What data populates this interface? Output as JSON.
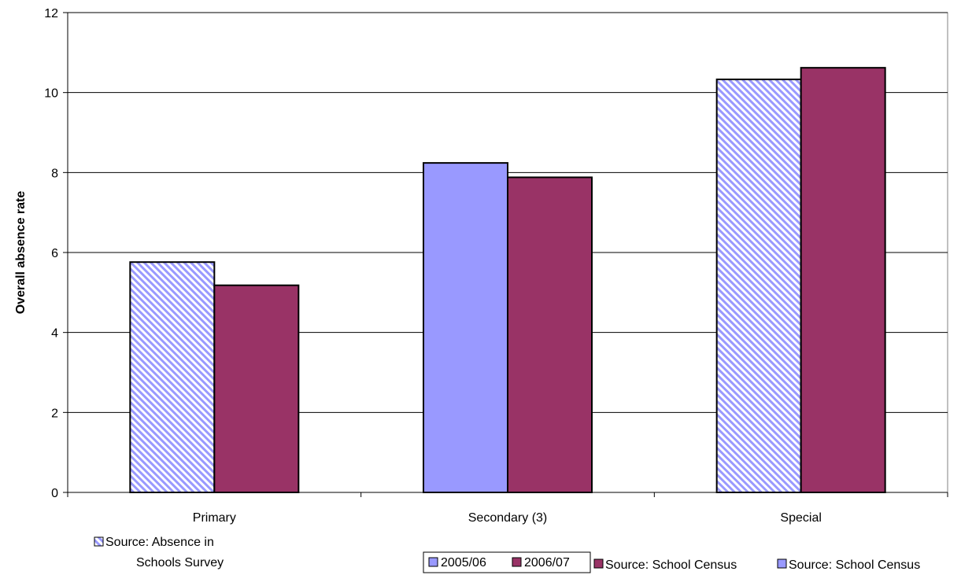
{
  "chart_data": {
    "type": "bar",
    "title": "",
    "xlabel": "",
    "ylabel": "Overall absence rate",
    "ylim": [
      0,
      12
    ],
    "yticks": [
      "0",
      "2",
      "4",
      "6",
      "8",
      "10",
      "12"
    ],
    "categories": [
      "Primary",
      "Secondary (3)",
      "Special"
    ],
    "grid": true,
    "series": [
      {
        "name": "2005/06",
        "values": [
          5.76,
          8.24,
          10.33
        ]
      },
      {
        "name": "2006/07",
        "values": [
          5.18,
          7.88,
          10.62
        ]
      }
    ],
    "bar_styles_2005_06": [
      "hatched",
      "solid",
      "hatched"
    ],
    "legend": {
      "survey_label_line1": "Source: Absence in",
      "survey_label_line2": "Schools Survey",
      "year1": "2005/06",
      "year2": "2006/07",
      "census_label_a": "Source: School Census",
      "census_label_b": "Source: School Census"
    },
    "colors": {
      "series_2005_06": "#9999ff",
      "series_2006_07": "#993366",
      "hatch_light": "#ffffff",
      "grid": "#000000"
    }
  }
}
